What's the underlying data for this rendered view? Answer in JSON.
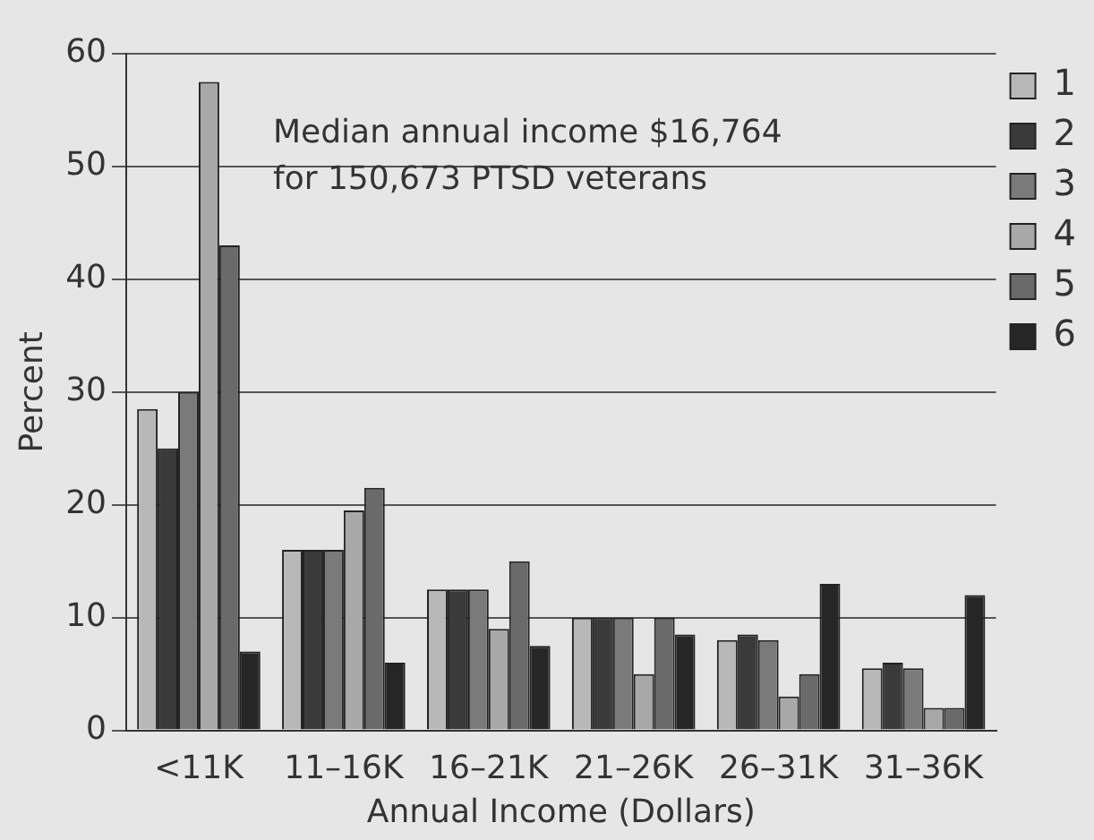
{
  "chart_data": {
    "type": "bar",
    "xlabel": "Annual Income (Dollars)",
    "ylabel": "Percent",
    "categories": [
      "<11K",
      "11–16K",
      "16–21K",
      "21–26K",
      "26–31K",
      "31–36K"
    ],
    "series": [
      {
        "name": "1",
        "color": "#b8b8b8",
        "values": [
          28.5,
          16,
          12.5,
          10,
          8,
          5.5
        ]
      },
      {
        "name": "2",
        "color": "#3a3a3a",
        "values": [
          25,
          16,
          12.5,
          10,
          8.5,
          6
        ]
      },
      {
        "name": "3",
        "color": "#7a7a7a",
        "values": [
          30,
          16,
          12.5,
          10,
          8,
          5.5
        ]
      },
      {
        "name": "4",
        "color": "#a8a8a8",
        "values": [
          57.5,
          19.5,
          9,
          5,
          3,
          2
        ]
      },
      {
        "name": "5",
        "color": "#6a6a6a",
        "values": [
          43,
          21.5,
          15,
          10,
          5,
          2
        ]
      },
      {
        "name": "6",
        "color": "#262626",
        "values": [
          7,
          6,
          7.5,
          8.5,
          13,
          12
        ]
      }
    ],
    "ylim": [
      0,
      60
    ],
    "yticks": [
      0,
      10,
      20,
      30,
      40,
      50,
      60
    ],
    "grid": "y",
    "legend": "top right",
    "annotations": [
      "Median annual income $16,764\nfor 150,673 PTSD veterans"
    ]
  }
}
